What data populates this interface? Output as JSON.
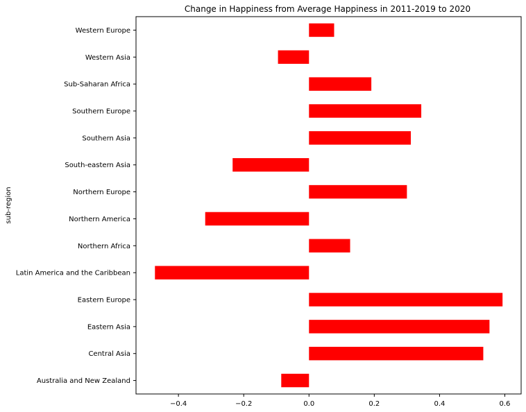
{
  "chart_data": {
    "type": "bar",
    "orientation": "horizontal",
    "title": "Change in Happiness from Average Happiness in 2011-2019 to 2020",
    "xlabel": "",
    "ylabel": "sub-region",
    "categories": [
      "Australia and New Zealand",
      "Central Asia",
      "Eastern Asia",
      "Eastern Europe",
      "Latin America and the Caribbean",
      "Northern Africa",
      "Northern America",
      "Northern Europe",
      "South-eastern Asia",
      "Southern Asia",
      "Southern Europe",
      "Sub-Saharan Africa",
      "Western Asia",
      "Western Europe"
    ],
    "values": [
      -0.085,
      0.534,
      0.553,
      0.593,
      -0.472,
      0.126,
      -0.318,
      0.3,
      -0.234,
      0.312,
      0.344,
      0.191,
      -0.095,
      0.077
    ],
    "xlim": [
      -0.53,
      0.65
    ],
    "xticks": [
      -0.4,
      -0.2,
      0.0,
      0.2,
      0.4,
      0.6
    ],
    "xtick_labels": [
      "−0.4",
      "−0.2",
      "0.0",
      "0.2",
      "0.4",
      "0.6"
    ],
    "grid": false,
    "legend": "none",
    "bar_color": "#ff0000"
  }
}
